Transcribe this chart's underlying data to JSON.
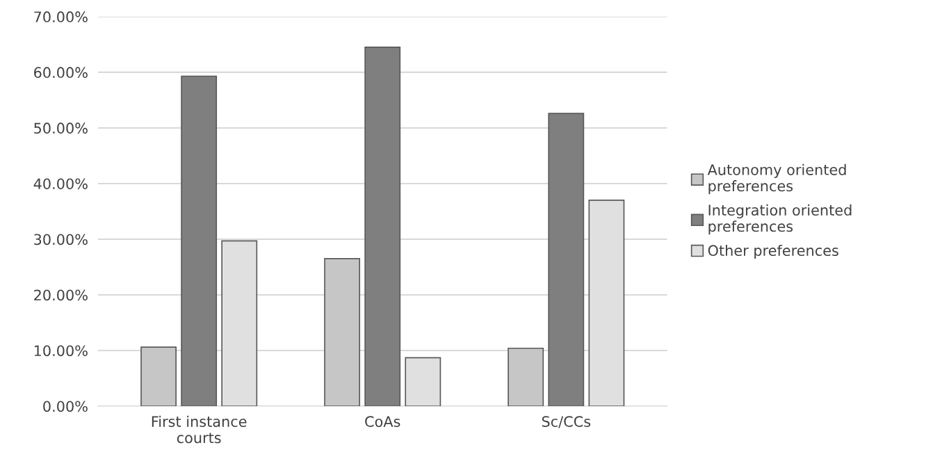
{
  "chart_data": {
    "type": "bar",
    "categories": [
      "First instance\ncourts",
      "CoAs",
      "Sc/CCs"
    ],
    "series": [
      {
        "name": "Autonomy oriented\npreferences",
        "color": "#c6c6c6",
        "values": [
          10.6,
          26.5,
          10.4
        ]
      },
      {
        "name": "Integration oriented\npreferences",
        "color": "#7f7f7f",
        "values": [
          59.3,
          64.5,
          52.6
        ]
      },
      {
        "name": "Other preferences",
        "color": "#e0e0e0",
        "values": [
          29.7,
          8.7,
          37.0
        ]
      }
    ],
    "ylim": [
      0,
      70
    ],
    "yticks": [
      {
        "value": 0,
        "label": "0.00%"
      },
      {
        "value": 10,
        "label": "10.00%"
      },
      {
        "value": 20,
        "label": "20.00%"
      },
      {
        "value": 30,
        "label": "30.00%"
      },
      {
        "value": 40,
        "label": "40.00%"
      },
      {
        "value": 50,
        "label": "50.00%"
      },
      {
        "value": 60,
        "label": "60.00%"
      },
      {
        "value": 70,
        "label": "70.00%"
      }
    ],
    "grid": "y",
    "legend": "right"
  }
}
